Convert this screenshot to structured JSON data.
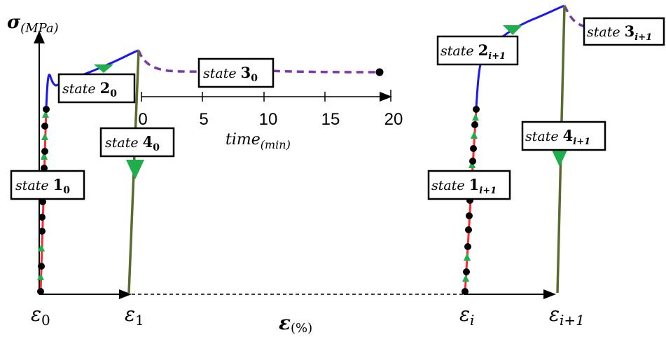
{
  "axes": {
    "y_label_main": "σ",
    "y_label_sub": "(MPa)",
    "x_label_main": "ε",
    "x_label_sub": "(%)"
  },
  "strain_ticks": {
    "e0_main": "ε",
    "e0_sub": "0",
    "e1_main": "ε",
    "e1_sub": "1",
    "ei_main": "ε",
    "ei_sub": "i",
    "ei1_main": "ε",
    "ei1_sub": "i+1"
  },
  "time_axis": {
    "label_main": "time",
    "label_sub": "(min)",
    "ticks": [
      "0",
      "5",
      "10",
      "15",
      "20"
    ]
  },
  "states": {
    "s1_0": {
      "text": "state ",
      "num": "1",
      "sub": "0"
    },
    "s2_0": {
      "text": "state ",
      "num": "2",
      "sub": "0"
    },
    "s3_0": {
      "text": "state ",
      "num": "3",
      "sub": "0"
    },
    "s4_0": {
      "text": "state ",
      "num": "4",
      "sub": "0"
    },
    "s1_i1": {
      "text": "state ",
      "num": "1",
      "sub": "i+1"
    },
    "s2_i1": {
      "text": "state ",
      "num": "2",
      "sub": "i+1"
    },
    "s3_i1": {
      "text": "state ",
      "num": "3",
      "sub": "i+1"
    },
    "s4_i1": {
      "text": "state ",
      "num": "4",
      "sub": "i+1"
    }
  },
  "colors": {
    "loading": "#ff2a2a",
    "yielding": "#1a1aee",
    "relaxation": "#7b3aa6",
    "unloading": "#5a6b2e",
    "marker_dot": "#000000",
    "marker_arrow": "#1fae4b"
  }
}
